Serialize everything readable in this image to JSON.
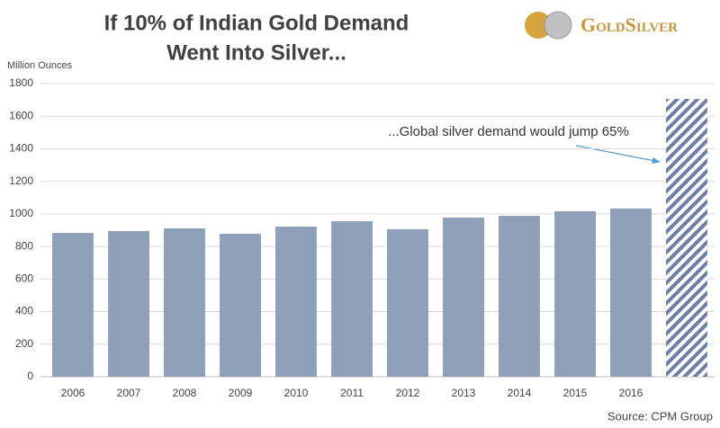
{
  "chart_data": {
    "type": "bar",
    "title_lines": [
      "If 10% of Indian Gold Demand",
      "Went Into Silver..."
    ],
    "ylabel": "Million Ounces",
    "brand": "GoldSilver",
    "source": "Source: CPM Group",
    "annotation": "...Global silver demand would jump 65%",
    "categories": [
      "2006",
      "2007",
      "2008",
      "2009",
      "2010",
      "2011",
      "2012",
      "2013",
      "2014",
      "2015",
      "2016",
      null
    ],
    "values": [
      883,
      895,
      911,
      878,
      922,
      955,
      906,
      977,
      988,
      1016,
      1033,
      1706
    ],
    "patterns": [
      "solid",
      "solid",
      "solid",
      "solid",
      "solid",
      "solid",
      "solid",
      "solid",
      "solid",
      "solid",
      "solid",
      "hatched"
    ],
    "color": "#8e9fb8",
    "hatch_color": "#6b7fa8",
    "ylim": [
      0,
      1800
    ],
    "yticks": [
      0,
      200,
      400,
      600,
      800,
      1000,
      1200,
      1400,
      1600,
      1800
    ],
    "grid": true
  }
}
